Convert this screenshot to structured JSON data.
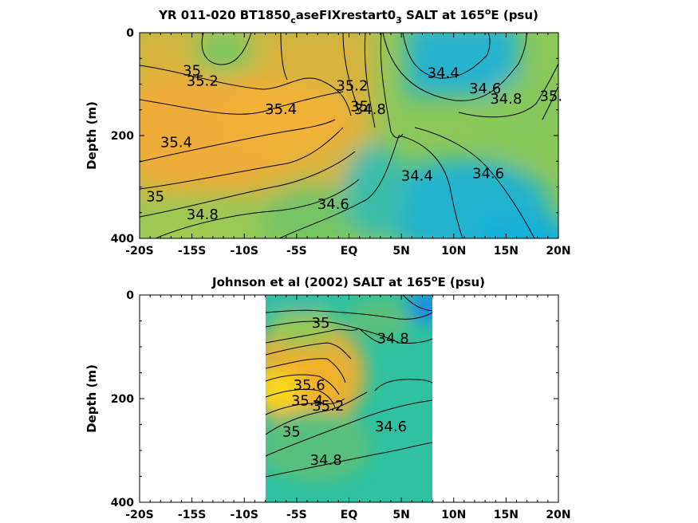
{
  "colors": {
    "warm": "#e5a93a",
    "mid": "#8cc85a",
    "teal": "#2fc1a0",
    "fresh": "#1fb0d8",
    "salty": "#f3d020",
    "axis": "#000000"
  },
  "chart_data": [
    {
      "type": "heatmap",
      "title_main": "YR 011-020 BT1850",
      "title_sub": "c",
      "title_mid": "aseFIXrestart0",
      "title_sub2": "3",
      "title_tail": " SALT at 165",
      "title_sup": "o",
      "title_end": "E (psu)",
      "ylabel": "Depth (m)",
      "x_ticks": [
        "-20S",
        "-15S",
        "-10S",
        "-5S",
        "EQ",
        "5N",
        "10N",
        "15N",
        "20N"
      ],
      "x_tick_values": [
        -20,
        -15,
        -10,
        -5,
        0,
        5,
        10,
        15,
        20
      ],
      "y_ticks": [
        "0",
        "200",
        "400"
      ],
      "y_tick_values": [
        0,
        200,
        400
      ],
      "xlim": [
        -20,
        20
      ],
      "ylim": [
        0,
        400
      ],
      "y_reversed": true,
      "contour_labels": [
        {
          "text": "35",
          "lat": -15,
          "depth": 75
        },
        {
          "text": "35.2",
          "lat": -14,
          "depth": 95
        },
        {
          "text": "35.4",
          "lat": -6.5,
          "depth": 150
        },
        {
          "text": "35.4",
          "lat": -16.5,
          "depth": 215
        },
        {
          "text": "35",
          "lat": -18.5,
          "depth": 320
        },
        {
          "text": "34.8",
          "lat": -14,
          "depth": 355
        },
        {
          "text": "34.6",
          "lat": -1.5,
          "depth": 335
        },
        {
          "text": "35.2",
          "lat": 0.3,
          "depth": 105
        },
        {
          "text": "35",
          "lat": 1,
          "depth": 145
        },
        {
          "text": "34.8",
          "lat": 2,
          "depth": 150
        },
        {
          "text": "34.4",
          "lat": 9,
          "depth": 80
        },
        {
          "text": "34.6",
          "lat": 13,
          "depth": 110
        },
        {
          "text": "34.8",
          "lat": 15,
          "depth": 130
        },
        {
          "text": "35.",
          "lat": 19.3,
          "depth": 125
        },
        {
          "text": "34.4",
          "lat": 6.5,
          "depth": 280
        },
        {
          "text": "34.6",
          "lat": 13.3,
          "depth": 275
        }
      ]
    },
    {
      "type": "heatmap",
      "title_main": "Johnson et al (2002) SALT at 165",
      "title_sup": "o",
      "title_end": "E (psu)",
      "ylabel": "Depth (m)",
      "x_ticks": [
        "-20S",
        "-15S",
        "-10S",
        "-5S",
        "EQ",
        "5N",
        "10N",
        "15N",
        "20N"
      ],
      "x_tick_values": [
        -20,
        -15,
        -10,
        -5,
        0,
        5,
        10,
        15,
        20
      ],
      "y_ticks": [
        "0",
        "200",
        "400"
      ],
      "y_tick_values": [
        0,
        200,
        400
      ],
      "xlim": [
        -20,
        20
      ],
      "ylim": [
        0,
        400
      ],
      "y_reversed": true,
      "data_extent_lat": [
        -8,
        8
      ],
      "contour_labels": [
        {
          "text": "35",
          "lat": -2.7,
          "depth": 55
        },
        {
          "text": "34.8",
          "lat": 4.2,
          "depth": 85
        },
        {
          "text": "35.6",
          "lat": -3.8,
          "depth": 175
        },
        {
          "text": "35.4",
          "lat": -4,
          "depth": 205
        },
        {
          "text": "35.2",
          "lat": -2,
          "depth": 215
        },
        {
          "text": "35",
          "lat": -5.5,
          "depth": 265
        },
        {
          "text": "34.6",
          "lat": 4,
          "depth": 255
        },
        {
          "text": "34.8",
          "lat": -2.2,
          "depth": 320
        }
      ]
    }
  ]
}
